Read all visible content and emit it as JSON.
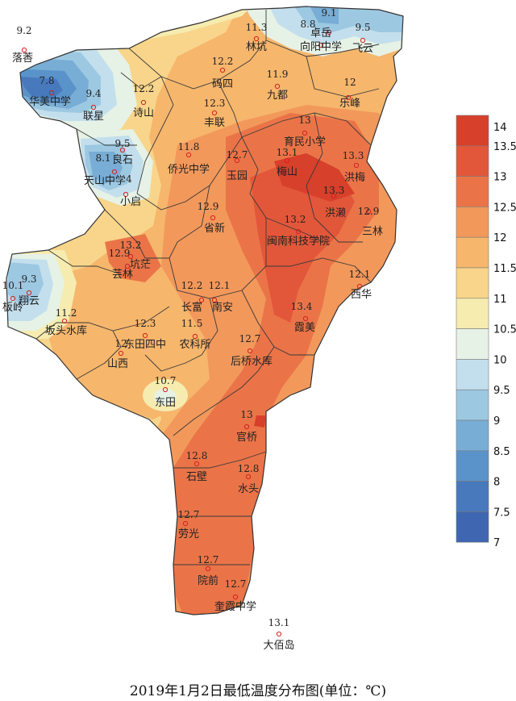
{
  "caption": "2019年1月2日最低温度分布图(单位：℃)",
  "legend": {
    "ticks": [
      "14",
      "13.5",
      "13",
      "12.5",
      "12",
      "11.5",
      "11",
      "10.5",
      "10",
      "9.5",
      "9",
      "8.5",
      "8",
      "7.5",
      "7"
    ],
    "colors": [
      "#d7402b",
      "#e2573a",
      "#ea7448",
      "#f2985b",
      "#f6b66c",
      "#f8d58a",
      "#f6ecb0",
      "#e6f2e6",
      "#c3dfed",
      "#9dc8e2",
      "#78add5",
      "#5a93c9",
      "#4779bc",
      "#3f66b1"
    ]
  },
  "stations": [
    {
      "name": "落莕",
      "value": "9.2"
    },
    {
      "name": "林坑",
      "value": "11.3"
    },
    {
      "name": "向阳中学",
      "value": ""
    },
    {
      "name": "卓岳",
      "value": "9.1"
    },
    {
      "name": "",
      "value": "8.8"
    },
    {
      "name": "飞云",
      "value": "9.5"
    },
    {
      "name": "华美中学",
      "value": "7.8"
    },
    {
      "name": "联星",
      "value": "9.4"
    },
    {
      "name": "诗山",
      "value": "12.2"
    },
    {
      "name": "码四",
      "value": "12.2"
    },
    {
      "name": "九都",
      "value": "11.9"
    },
    {
      "name": "乐峰",
      "value": "12"
    },
    {
      "name": "丰联",
      "value": "12.3"
    },
    {
      "name": "育民小学",
      "value": "13"
    },
    {
      "name": "良石",
      "value": "9.5"
    },
    {
      "name": "",
      "value": "8.1"
    },
    {
      "name": "天山中学",
      "value": "4"
    },
    {
      "name": "小启",
      "value": ""
    },
    {
      "name": "侨光中学",
      "value": "11.8"
    },
    {
      "name": "玉园",
      "value": "12.7"
    },
    {
      "name": "梅山",
      "value": "13.1"
    },
    {
      "name": "洪梅",
      "value": "13.3"
    },
    {
      "name": "洪濑",
      "value": "13.3"
    },
    {
      "name": "三林",
      "value": "12.9"
    },
    {
      "name": "省新",
      "value": "12.9"
    },
    {
      "name": "闽南科技学院",
      "value": "13.2"
    },
    {
      "name": "",
      "value": "13.2"
    },
    {
      "name": "芸林",
      "value": "12.9"
    },
    {
      "name": "坑茫",
      "value": ""
    },
    {
      "name": "西华",
      "value": "12.1"
    },
    {
      "name": "翔云",
      "value": "9.3"
    },
    {
      "name": "板岭",
      "value": "10.1"
    },
    {
      "name": "坂头水库",
      "value": "11.2"
    },
    {
      "name": "长富",
      "value": "12.2"
    },
    {
      "name": "南安",
      "value": "12.1"
    },
    {
      "name": "霞美",
      "value": "13.4"
    },
    {
      "name": "东田四中",
      "value": "12.3"
    },
    {
      "name": "农科所",
      "value": "11.5"
    },
    {
      "name": "山西",
      "value": "12"
    },
    {
      "name": "后桥水库",
      "value": "12.7"
    },
    {
      "name": "东田",
      "value": "10.7"
    },
    {
      "name": "官桥",
      "value": "13"
    },
    {
      "name": "石壁",
      "value": "12.8"
    },
    {
      "name": "水头",
      "value": "12.8"
    },
    {
      "name": "劳光",
      "value": "12.7"
    },
    {
      "name": "院前",
      "value": "12.7"
    },
    {
      "name": "奎霞中学",
      "value": "12.7"
    },
    {
      "name": "大佰岛",
      "value": "13.1"
    }
  ]
}
